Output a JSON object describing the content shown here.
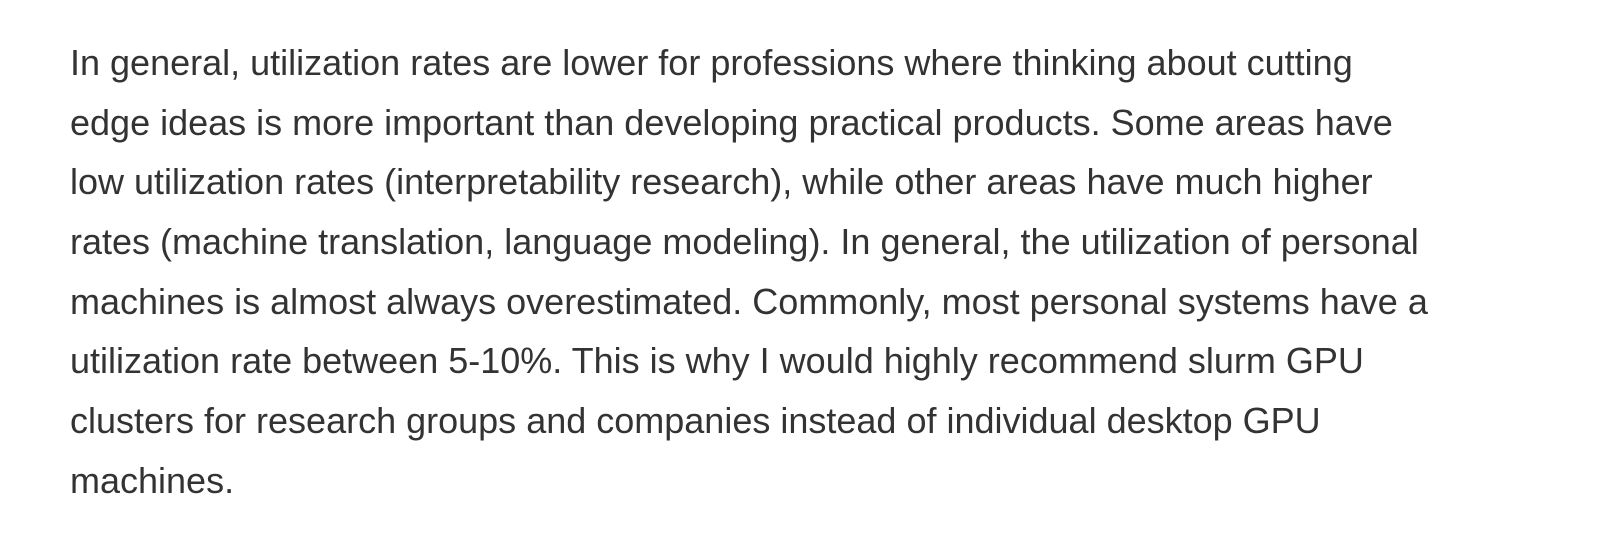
{
  "paragraph": {
    "lines": [
      "In general, utilization rates are lower for professions where thinking about cutting",
      "edge ideas is more important than developing practical products. Some areas have",
      "low utilization rates (interpretability research), while other areas have much higher",
      "rates (machine translation, language modeling). In general, the utilization of personal",
      "machines is almost always overestimated. Commonly, most personal systems have a",
      "utilization rate between 5-10%. This is why I would highly recommend slurm GPU",
      "clusters for research groups and companies instead of individual desktop GPU",
      "machines."
    ]
  }
}
